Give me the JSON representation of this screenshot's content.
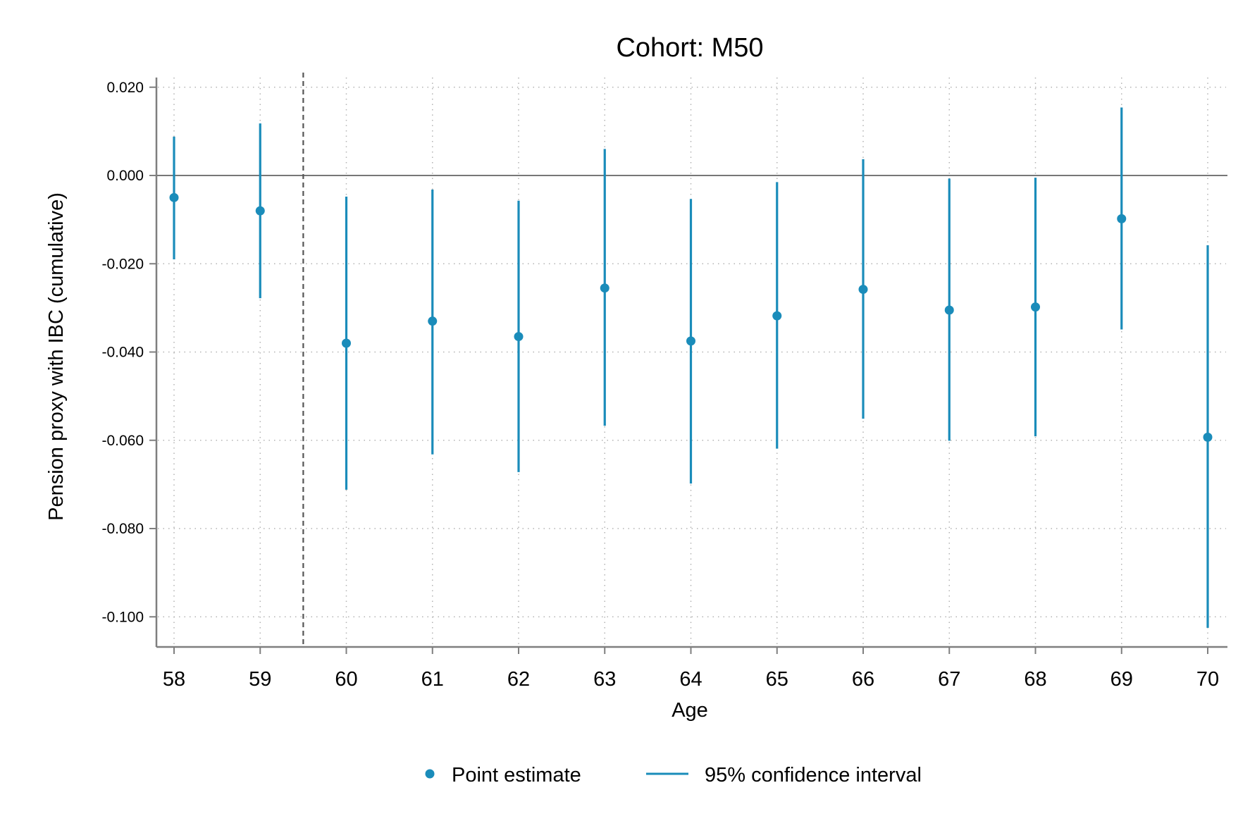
{
  "chart_data": {
    "type": "scatter",
    "title": "Cohort: M50",
    "xlabel": "Age",
    "ylabel": "Pension proxy with IBC (cumulative)",
    "x": [
      58,
      59,
      60,
      61,
      62,
      63,
      64,
      65,
      66,
      67,
      68,
      69,
      70
    ],
    "x_tick_labels": [
      "58",
      "59",
      "60",
      "61",
      "62",
      "63",
      "64",
      "65",
      "66",
      "67",
      "68",
      "69",
      "70"
    ],
    "y_ticks": [
      0.02,
      0.0,
      -0.02,
      -0.04,
      -0.06,
      -0.08,
      -0.1
    ],
    "y_tick_labels": [
      "0.020",
      "0.000",
      "-0.020",
      "-0.040",
      "-0.060",
      "-0.080",
      "-0.100"
    ],
    "xlim": [
      57.8,
      70.2
    ],
    "ylim": [
      -0.107,
      0.025
    ],
    "grid": true,
    "reference_line_y": 0,
    "vertical_dashed_line_x": 59.5,
    "series": [
      {
        "name": "Point estimate",
        "values": [
          -0.005,
          -0.008,
          -0.038,
          -0.033,
          -0.0365,
          -0.0255,
          -0.0375,
          -0.0318,
          -0.0258,
          -0.0305,
          -0.0298,
          -0.0098,
          -0.0593
        ]
      },
      {
        "name": "95% confidence interval",
        "lower": [
          -0.019,
          -0.0278,
          -0.0712,
          -0.0632,
          -0.0672,
          -0.0567,
          -0.0698,
          -0.0619,
          -0.0551,
          -0.0601,
          -0.0591,
          -0.0349,
          -0.1025
        ],
        "upper": [
          0.0088,
          0.0118,
          -0.0048,
          -0.0032,
          -0.0057,
          0.006,
          -0.0053,
          -0.0015,
          0.0037,
          -0.0007,
          -0.0005,
          0.0154,
          -0.0158
        ]
      }
    ],
    "legend_position": "bottom",
    "colors": {
      "marker": "#1a8cba",
      "axis": "#7f7f7f",
      "grid": "#b3b3b3",
      "ref_line": "#777777"
    }
  }
}
